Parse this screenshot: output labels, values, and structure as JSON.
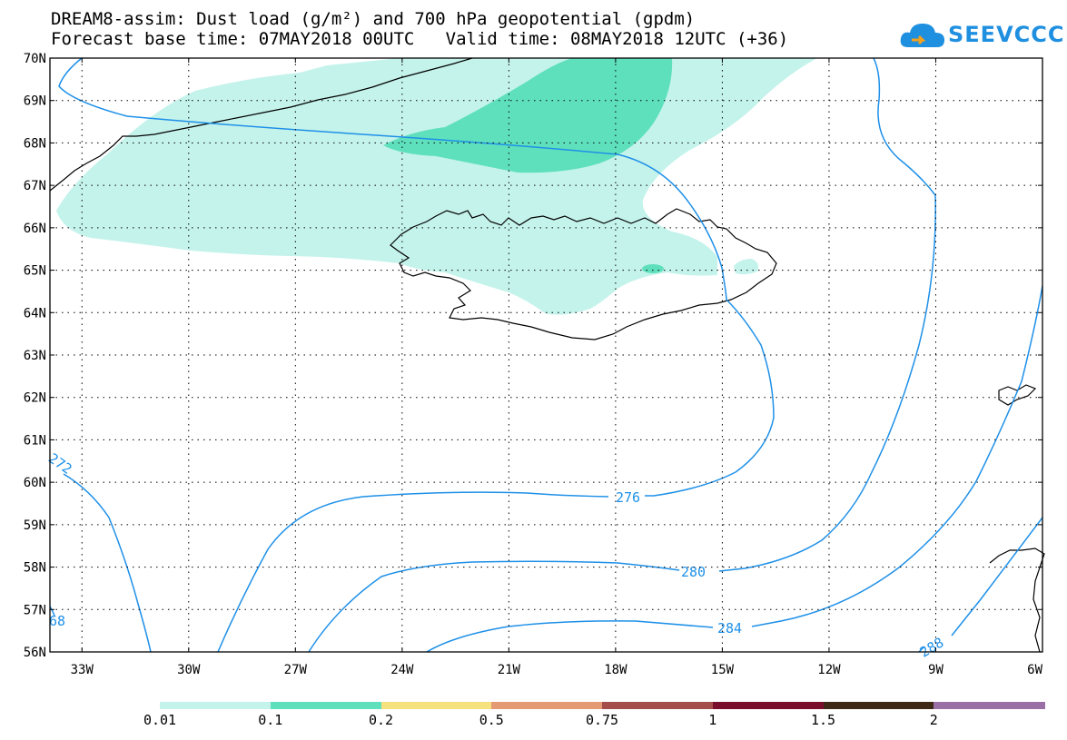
{
  "title": {
    "line1": "DREAM8-assim: Dust load (g/m²) and 700 hPa geopotential (gpdm)",
    "line2": "Forecast base time: 07MAY2018 00UTC   Valid time: 08MAY2018 12UTC (+36)"
  },
  "logo": {
    "text": "SEEVCCC",
    "icon": "cloud-icon"
  },
  "axes": {
    "lat_labels": [
      "70N",
      "69N",
      "68N",
      "67N",
      "66N",
      "65N",
      "64N",
      "63N",
      "62N",
      "61N",
      "60N",
      "59N",
      "58N",
      "57N",
      "56N"
    ],
    "lon_labels": [
      "33W",
      "30W",
      "27W",
      "24W",
      "21W",
      "18W",
      "15W",
      "12W",
      "9W",
      "6W"
    ]
  },
  "contours": {
    "labels": [
      "272",
      "276",
      "280",
      "284",
      "288",
      "68"
    ],
    "color": "#1e90e8"
  },
  "colorbar": {
    "labels": [
      "0.01",
      "0.1",
      "0.2",
      "0.5",
      "0.75",
      "1",
      "1.5",
      "2"
    ],
    "colors": [
      "#c4f3eb",
      "#5fe0bc",
      "#f5e27e",
      "#e49b74",
      "#a54d4b",
      "#7a0e2a",
      "#3e2917",
      "#9a6fa6"
    ]
  }
}
